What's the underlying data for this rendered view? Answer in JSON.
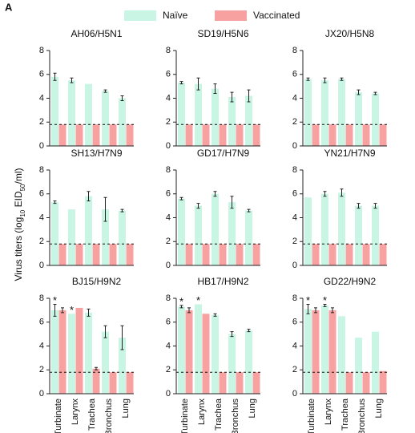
{
  "panel_label": "A",
  "y_label_parts": [
    "Virus titers (log",
    "10",
    " EID",
    "50",
    "/ml)"
  ],
  "chart_data": [
    {
      "type": "bar",
      "title": "AH06/H5N1",
      "categories": [
        null,
        null,
        null,
        null,
        null
      ],
      "series": [
        {
          "name": "Naïve",
          "color": "#c9f5e4",
          "values": [
            5.8,
            5.5,
            5.2,
            4.6,
            4.0
          ],
          "errors": [
            0.3,
            0.2,
            0,
            0.1,
            0.2
          ]
        },
        {
          "name": "Vaccinated",
          "color": "#f7a1a1",
          "values": [
            1.8,
            1.8,
            1.8,
            1.8,
            1.8
          ],
          "errors": [
            0,
            0,
            0,
            0,
            0
          ]
        }
      ],
      "ylim": [
        0,
        8
      ],
      "yticks": [
        0,
        2,
        4,
        6,
        8
      ],
      "detection_limit": 1.8,
      "significance": [
        null,
        null,
        null,
        null,
        null
      ]
    },
    {
      "type": "bar",
      "title": "SD19/H5N6",
      "categories": [
        null,
        null,
        null,
        null,
        null
      ],
      "series": [
        {
          "name": "Naïve",
          "color": "#c9f5e4",
          "values": [
            5.3,
            5.2,
            4.8,
            4.1,
            4.2
          ],
          "errors": [
            0.1,
            0.5,
            0.4,
            0.4,
            0.5
          ]
        },
        {
          "name": "Vaccinated",
          "color": "#f7a1a1",
          "values": [
            1.8,
            1.8,
            1.8,
            1.8,
            1.8
          ],
          "errors": [
            0,
            0,
            0,
            0,
            0
          ]
        }
      ],
      "ylim": [
        0,
        8
      ],
      "yticks": [
        0,
        2,
        4,
        6,
        8
      ],
      "detection_limit": 1.8,
      "significance": [
        null,
        null,
        null,
        null,
        null
      ]
    },
    {
      "type": "bar",
      "title": "JX20/H5N8",
      "categories": [
        null,
        null,
        null,
        null,
        null
      ],
      "series": [
        {
          "name": "Naïve",
          "color": "#c9f5e4",
          "values": [
            5.6,
            5.5,
            5.6,
            4.5,
            4.4
          ],
          "errors": [
            0.1,
            0.2,
            0.1,
            0.2,
            0.1
          ]
        },
        {
          "name": "Vaccinated",
          "color": "#f7a1a1",
          "values": [
            1.8,
            1.8,
            1.8,
            1.8,
            1.8
          ],
          "errors": [
            0,
            0,
            0,
            0,
            0
          ]
        }
      ],
      "ylim": [
        0,
        8
      ],
      "yticks": [
        0,
        2,
        4,
        6,
        8
      ],
      "detection_limit": 1.8,
      "significance": [
        null,
        null,
        null,
        null,
        null
      ]
    },
    {
      "type": "bar",
      "title": "SH13/H7N9",
      "categories": [
        null,
        null,
        null,
        null,
        null
      ],
      "series": [
        {
          "name": "Naïve",
          "color": "#c9f5e4",
          "values": [
            5.3,
            4.7,
            5.8,
            4.7,
            4.6
          ],
          "errors": [
            0.1,
            0,
            0.4,
            1.0,
            0.1
          ]
        },
        {
          "name": "Vaccinated",
          "color": "#f7a1a1",
          "values": [
            1.8,
            1.8,
            1.8,
            1.8,
            1.8
          ],
          "errors": [
            0,
            0,
            0,
            0,
            0
          ]
        }
      ],
      "ylim": [
        0,
        8
      ],
      "yticks": [
        0,
        2,
        4,
        6,
        8
      ],
      "detection_limit": 1.8,
      "significance": [
        null,
        null,
        null,
        null,
        null
      ]
    },
    {
      "type": "bar",
      "title": "GD17/H7N9",
      "categories": [
        null,
        null,
        null,
        null,
        null
      ],
      "series": [
        {
          "name": "Naïve",
          "color": "#c9f5e4",
          "values": [
            5.6,
            5.0,
            6.0,
            5.3,
            4.6
          ],
          "errors": [
            0.1,
            0.2,
            0.2,
            0.5,
            0.1
          ]
        },
        {
          "name": "Vaccinated",
          "color": "#f7a1a1",
          "values": [
            1.8,
            1.8,
            1.8,
            1.8,
            1.8
          ],
          "errors": [
            0,
            0,
            0,
            0,
            0
          ]
        }
      ],
      "ylim": [
        0,
        8
      ],
      "yticks": [
        0,
        2,
        4,
        6,
        8
      ],
      "detection_limit": 1.8,
      "significance": [
        null,
        null,
        null,
        null,
        null
      ]
    },
    {
      "type": "bar",
      "title": "YN21/H7N9",
      "categories": [
        null,
        null,
        null,
        null,
        null
      ],
      "series": [
        {
          "name": "Naïve",
          "color": "#c9f5e4",
          "values": [
            5.7,
            6.0,
            6.1,
            5.0,
            5.0
          ],
          "errors": [
            0,
            0.2,
            0.3,
            0.2,
            0.2
          ]
        },
        {
          "name": "Vaccinated",
          "color": "#f7a1a1",
          "values": [
            1.8,
            1.8,
            1.8,
            1.8,
            1.8
          ],
          "errors": [
            0,
            0,
            0,
            0,
            0
          ]
        }
      ],
      "ylim": [
        0,
        8
      ],
      "yticks": [
        0,
        2,
        4,
        6,
        8
      ],
      "detection_limit": 1.8,
      "significance": [
        null,
        null,
        null,
        null,
        null
      ]
    },
    {
      "type": "bar",
      "title": "BJ15/H9N2",
      "categories": [
        "Turbinate",
        "Larynx",
        "Trachea",
        "Bronchus",
        "Lung"
      ],
      "series": [
        {
          "name": "Naïve",
          "color": "#c9f5e4",
          "values": [
            7.0,
            6.7,
            6.8,
            5.2,
            4.7
          ],
          "errors": [
            0.5,
            0,
            0.3,
            0.5,
            1.0
          ]
        },
        {
          "name": "Vaccinated",
          "color": "#f7a1a1",
          "values": [
            7.0,
            7.2,
            2.1,
            1.8,
            1.8
          ],
          "errors": [
            0.2,
            0,
            0.1,
            0,
            0
          ]
        }
      ],
      "ylim": [
        0,
        8
      ],
      "yticks": [
        0,
        2,
        4,
        6,
        8
      ],
      "detection_limit": 1.8,
      "significance": [
        "*",
        "*",
        null,
        null,
        null
      ]
    },
    {
      "type": "bar",
      "title": "HB17/H9N2",
      "categories": [
        "Turbinate",
        "Larynx",
        "Trachea",
        "Bronchus",
        "Lung"
      ],
      "series": [
        {
          "name": "Naïve",
          "color": "#c9f5e4",
          "values": [
            7.3,
            7.5,
            6.6,
            5.0,
            5.3
          ],
          "errors": [
            0.1,
            0,
            0.1,
            0.2,
            0.1
          ]
        },
        {
          "name": "Vaccinated",
          "color": "#f7a1a1",
          "values": [
            7.0,
            6.7,
            1.8,
            1.8,
            1.8
          ],
          "errors": [
            0.2,
            0,
            0,
            0,
            0
          ]
        }
      ],
      "ylim": [
        0,
        8
      ],
      "yticks": [
        0,
        2,
        4,
        6,
        8
      ],
      "detection_limit": 1.8,
      "significance": [
        "*",
        "*",
        null,
        null,
        null
      ]
    },
    {
      "type": "bar",
      "title": "GD22/H9N2",
      "categories": [
        "Turbinate",
        "Larynx",
        "Trachea",
        "Bronchus",
        "Lung"
      ],
      "series": [
        {
          "name": "Naïve",
          "color": "#c9f5e4",
          "values": [
            7.1,
            7.4,
            6.5,
            4.7,
            5.2
          ],
          "errors": [
            0.4,
            0.1,
            0,
            0,
            0
          ]
        },
        {
          "name": "Vaccinated",
          "color": "#f7a1a1",
          "values": [
            7.0,
            7.0,
            1.8,
            1.8,
            1.9
          ],
          "errors": [
            0.2,
            0.2,
            0,
            0,
            0
          ]
        }
      ],
      "ylim": [
        0,
        8
      ],
      "yticks": [
        0,
        2,
        4,
        6,
        8
      ],
      "detection_limit": 1.8,
      "significance": [
        "*",
        "*",
        null,
        null,
        null
      ]
    }
  ]
}
